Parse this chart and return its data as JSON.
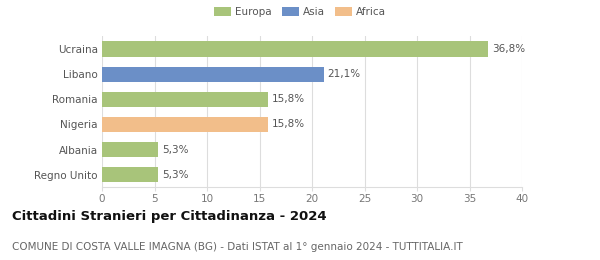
{
  "categories": [
    "Ucraina",
    "Libano",
    "Romania",
    "Nigeria",
    "Albania",
    "Regno Unito"
  ],
  "values": [
    36.8,
    21.1,
    15.8,
    15.8,
    5.3,
    5.3
  ],
  "labels": [
    "36,8%",
    "21,1%",
    "15,8%",
    "15,8%",
    "5,3%",
    "5,3%"
  ],
  "colors": [
    "#a8c47a",
    "#6b8fc7",
    "#a8c47a",
    "#f2be8a",
    "#a8c47a",
    "#a8c47a"
  ],
  "legend": [
    {
      "label": "Europa",
      "color": "#a8c47a"
    },
    {
      "label": "Asia",
      "color": "#6b8fc7"
    },
    {
      "label": "Africa",
      "color": "#f2be8a"
    }
  ],
  "xlim": [
    0,
    40
  ],
  "xticks": [
    0,
    5,
    10,
    15,
    20,
    25,
    30,
    35,
    40
  ],
  "title_bold": "Cittadini Stranieri per Cittadinanza - 2024",
  "subtitle": "COMUNE DI COSTA VALLE IMAGNA (BG) - Dati ISTAT al 1° gennaio 2024 - TUTTITALIA.IT",
  "background_color": "#ffffff",
  "grid_color": "#dddddd",
  "bar_height": 0.6,
  "label_fontsize": 7.5,
  "tick_fontsize": 7.5,
  "title_fontsize": 9.5,
  "subtitle_fontsize": 7.5
}
